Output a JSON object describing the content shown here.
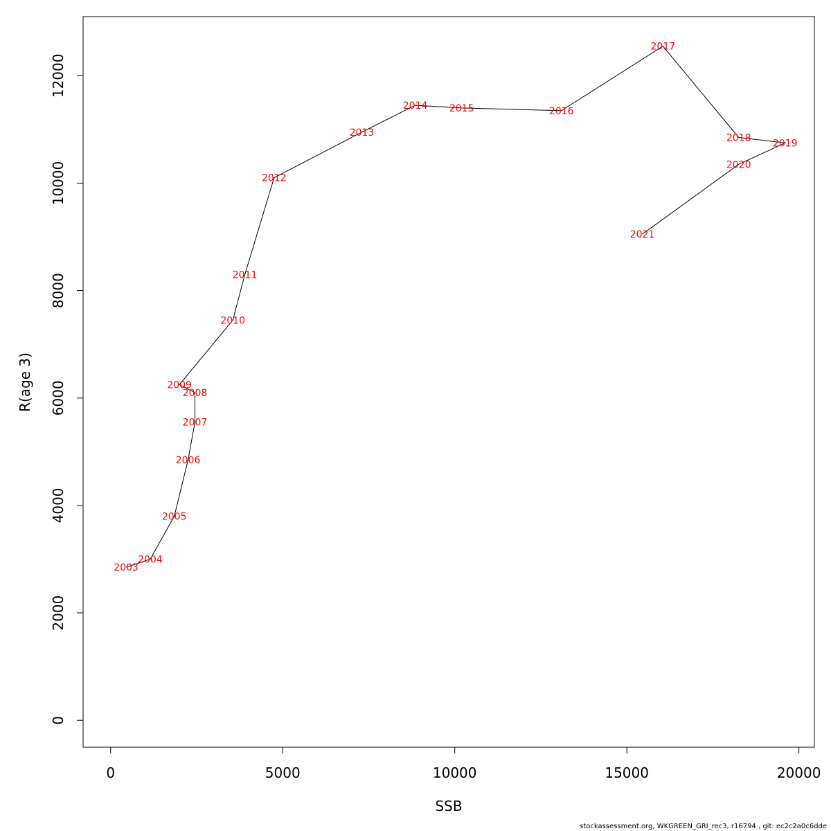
{
  "chart_data": {
    "type": "line",
    "title": "",
    "xlabel": "SSB",
    "ylabel": "R(age 3)",
    "xlim": [
      -800,
      20450
    ],
    "ylim": [
      -500,
      13100
    ],
    "xticks": [
      0,
      5000,
      10000,
      15000,
      20000
    ],
    "yticks": [
      0,
      2000,
      4000,
      6000,
      8000,
      10000,
      12000
    ],
    "grid": false,
    "line_color": "#000000",
    "label_color": "#ff0000",
    "points": [
      {
        "label": "2003",
        "x": 450,
        "y": 2850
      },
      {
        "label": "2004",
        "x": 1150,
        "y": 3000
      },
      {
        "label": "2005",
        "x": 1850,
        "y": 3800
      },
      {
        "label": "2006",
        "x": 2250,
        "y": 4850
      },
      {
        "label": "2007",
        "x": 2450,
        "y": 5550
      },
      {
        "label": "2008",
        "x": 2450,
        "y": 6100
      },
      {
        "label": "2009",
        "x": 2000,
        "y": 6250
      },
      {
        "label": "2010",
        "x": 3550,
        "y": 7450
      },
      {
        "label": "2011",
        "x": 3900,
        "y": 8300
      },
      {
        "label": "2012",
        "x": 4750,
        "y": 10100
      },
      {
        "label": "2013",
        "x": 7300,
        "y": 10950
      },
      {
        "label": "2014",
        "x": 8850,
        "y": 11450
      },
      {
        "label": "2015",
        "x": 10200,
        "y": 11400
      },
      {
        "label": "2016",
        "x": 13100,
        "y": 11350
      },
      {
        "label": "2017",
        "x": 16050,
        "y": 12550
      },
      {
        "label": "2018",
        "x": 18250,
        "y": 10850
      },
      {
        "label": "2019",
        "x": 19600,
        "y": 10750
      },
      {
        "label": "2020",
        "x": 18250,
        "y": 10350
      },
      {
        "label": "2021",
        "x": 15450,
        "y": 9050
      }
    ]
  },
  "footer": "stockassessment.org, WKGREEN_GRI_rec3, r16794 , git: ec2c2a0c6dde"
}
